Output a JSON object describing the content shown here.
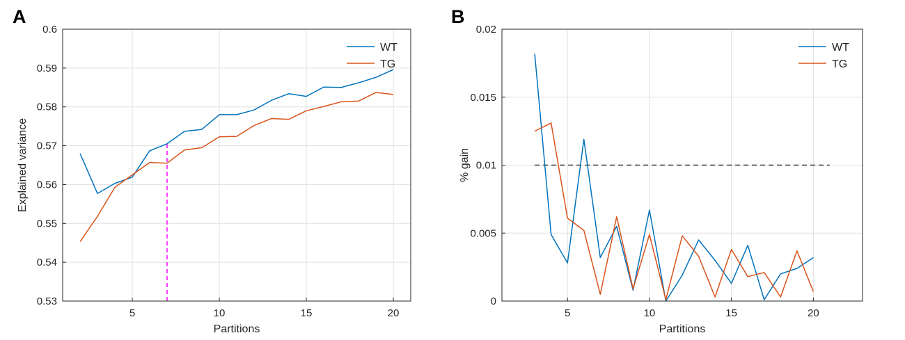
{
  "chart_data": [
    {
      "panel": "A",
      "type": "line",
      "xlabel": "Partitions",
      "ylabel": "Explained variance",
      "xlim": [
        1,
        21
      ],
      "ylim": [
        0.53,
        0.6
      ],
      "xticks": [
        5,
        10,
        15,
        20
      ],
      "xtick_labels": [
        "5",
        "10",
        "15",
        "20"
      ],
      "yticks": [
        0.53,
        0.54,
        0.55,
        0.56,
        0.57,
        0.58,
        0.59,
        0.6
      ],
      "ytick_labels": [
        "0.53",
        "0.54",
        "0.55",
        "0.56",
        "0.57",
        "0.58",
        "0.59",
        "0.6"
      ],
      "grid": true,
      "legend_position": "top-right",
      "x": [
        2,
        3,
        4,
        5,
        6,
        7,
        8,
        9,
        10,
        11,
        12,
        13,
        14,
        15,
        16,
        17,
        18,
        19,
        20
      ],
      "series": [
        {
          "name": "WT",
          "color": "#0072bd",
          "values": [
            0.568,
            0.5577,
            0.5603,
            0.5619,
            0.5687,
            0.5705,
            0.5737,
            0.5742,
            0.578,
            0.578,
            0.5792,
            0.5817,
            0.5834,
            0.5827,
            0.5851,
            0.585,
            0.5862,
            0.5876,
            0.5896
          ]
        },
        {
          "name": "TG",
          "color": "#d95319",
          "values": [
            0.5453,
            0.5518,
            0.5593,
            0.5625,
            0.5657,
            0.5655,
            0.5689,
            0.5695,
            0.5723,
            0.5724,
            0.5752,
            0.577,
            0.5768,
            0.579,
            0.5801,
            0.5813,
            0.5815,
            0.5837,
            0.5832
          ]
        }
      ],
      "reference_line": {
        "orientation": "vertical",
        "x": 7,
        "from_y": 0.53,
        "to_y": 0.5705,
        "color": "#ff00ff",
        "style": "dashed"
      }
    },
    {
      "panel": "B",
      "type": "line",
      "xlabel": "Partitions",
      "ylabel": "% gain",
      "xlim": [
        1,
        23
      ],
      "ylim": [
        0,
        0.02
      ],
      "xticks": [
        5,
        10,
        15,
        20
      ],
      "xtick_labels": [
        "5",
        "10",
        "15",
        "20"
      ],
      "yticks": [
        0,
        0.005,
        0.01,
        0.015,
        0.02
      ],
      "ytick_labels": [
        "0",
        "0.005",
        "0.01",
        "0.015",
        "0.02"
      ],
      "grid": true,
      "legend_position": "top-right",
      "x": [
        3,
        4,
        5,
        6,
        7,
        8,
        9,
        10,
        11,
        12,
        13,
        14,
        15,
        16,
        17,
        18,
        19,
        20
      ],
      "series": [
        {
          "name": "WT",
          "color": "#0072bd",
          "values": [
            0.0182,
            0.0049,
            0.0028,
            0.0119,
            0.0032,
            0.0055,
            0.0008,
            0.0067,
            0.0,
            0.0019,
            0.0045,
            0.003,
            0.0013,
            0.0041,
            0.0001,
            0.002,
            0.0024,
            0.0032
          ]
        },
        {
          "name": "TG",
          "color": "#d95319",
          "values": [
            0.0125,
            0.0131,
            0.0061,
            0.0052,
            0.0005,
            0.0062,
            0.0009,
            0.0049,
            0.0001,
            0.0048,
            0.0033,
            0.0003,
            0.0038,
            0.0018,
            0.0021,
            0.0003,
            0.0037,
            0.0007
          ]
        }
      ],
      "reference_line": {
        "orientation": "horizontal",
        "y": 0.01,
        "from_x": 3,
        "to_x": 21,
        "color": "#333333",
        "style": "dashed"
      }
    }
  ]
}
